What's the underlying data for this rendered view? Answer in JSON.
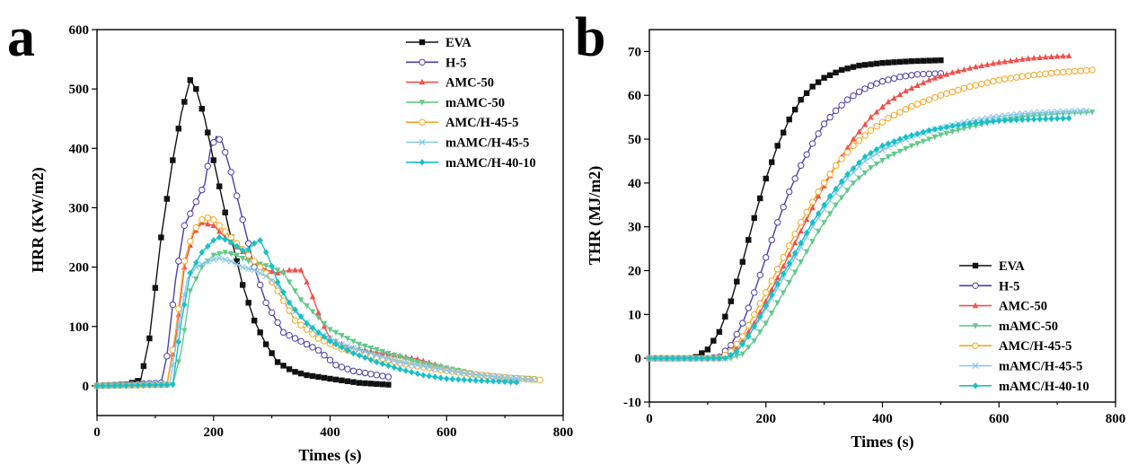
{
  "colors": {
    "EVA": "#111111",
    "H-5": "#4a3fa8",
    "AMC-50": "#f0514a",
    "mAMC-50": "#62c98a",
    "AMC/H-45-5": "#f5a623",
    "mAMC/H-45-5": "#86c7e8",
    "mAMC/H-40-10": "#17c0c8"
  },
  "chart_data": [
    {
      "type": "line",
      "panel_label": "a",
      "xlabel": "Times (s)",
      "ylabel": "HRR (KW/m2)",
      "xlim": [
        0,
        800
      ],
      "ylim": [
        -50,
        600
      ],
      "xticks": [
        0,
        200,
        400,
        600,
        800
      ],
      "yticks": [
        0,
        100,
        200,
        300,
        400,
        500,
        600
      ],
      "legend_position": "top-right",
      "series": [
        {
          "name": "EVA",
          "marker": "square",
          "x": [
            0,
            50,
            75,
            90,
            110,
            130,
            145,
            160,
            170,
            185,
            200,
            225,
            250,
            270,
            290,
            310,
            335,
            360,
            400,
            450,
            500
          ],
          "y": [
            0,
            2,
            10,
            80,
            250,
            380,
            460,
            515,
            500,
            450,
            380,
            270,
            170,
            110,
            70,
            40,
            25,
            18,
            12,
            5,
            2
          ]
        },
        {
          "name": "H-5",
          "marker": "circle-open",
          "x": [
            0,
            110,
            120,
            135,
            150,
            170,
            185,
            195,
            205,
            215,
            230,
            250,
            270,
            290,
            320,
            350,
            380,
            410,
            440,
            470,
            500
          ],
          "y": [
            0,
            5,
            50,
            180,
            270,
            310,
            340,
            400,
            420,
            410,
            360,
            280,
            200,
            140,
            90,
            75,
            60,
            35,
            25,
            20,
            15
          ]
        },
        {
          "name": "AMC-50",
          "marker": "triangle-up",
          "x": [
            0,
            120,
            135,
            150,
            165,
            180,
            200,
            220,
            245,
            270,
            290,
            310,
            330,
            350,
            360,
            370,
            385,
            400,
            430,
            470,
            510,
            550,
            600,
            650,
            700,
            720
          ],
          "y": [
            0,
            2,
            80,
            200,
            255,
            275,
            270,
            250,
            230,
            210,
            195,
            190,
            195,
            195,
            175,
            150,
            110,
            80,
            65,
            58,
            52,
            45,
            30,
            20,
            12,
            8
          ]
        },
        {
          "name": "mAMC-50",
          "marker": "triangle-down",
          "x": [
            0,
            130,
            145,
            160,
            180,
            200,
            220,
            240,
            260,
            280,
            300,
            320,
            350,
            400,
            450,
            500,
            550,
            600,
            650,
            700,
            750,
            760
          ],
          "y": [
            0,
            2,
            60,
            160,
            200,
            220,
            225,
            220,
            210,
            205,
            200,
            190,
            145,
            95,
            70,
            55,
            40,
            30,
            20,
            15,
            12,
            10
          ]
        },
        {
          "name": "AMC/H-45-5",
          "marker": "circle-open",
          "x": [
            0,
            120,
            135,
            150,
            165,
            180,
            195,
            210,
            230,
            250,
            270,
            290,
            310,
            340,
            380,
            420,
            470,
            520,
            580,
            640,
            700,
            760
          ],
          "y": [
            0,
            2,
            90,
            210,
            260,
            280,
            285,
            270,
            250,
            230,
            210,
            190,
            160,
            110,
            80,
            62,
            50,
            38,
            28,
            20,
            14,
            10
          ]
        },
        {
          "name": "mAMC/H-45-5",
          "marker": "x",
          "x": [
            0,
            125,
            140,
            155,
            170,
            190,
            210,
            230,
            250,
            270,
            290,
            310,
            340,
            380,
            420,
            470,
            520,
            580,
            640,
            700,
            750
          ],
          "y": [
            0,
            2,
            100,
            180,
            200,
            210,
            215,
            210,
            200,
            195,
            185,
            170,
            125,
            90,
            70,
            55,
            40,
            30,
            20,
            14,
            10
          ]
        },
        {
          "name": "mAMC/H-40-10",
          "marker": "diamond",
          "x": [
            0,
            130,
            145,
            160,
            180,
            200,
            210,
            225,
            240,
            255,
            270,
            280,
            295,
            310,
            330,
            360,
            400,
            440,
            480,
            520,
            560,
            600,
            650,
            700,
            720
          ],
          "y": [
            0,
            2,
            110,
            190,
            225,
            245,
            250,
            245,
            235,
            225,
            240,
            245,
            215,
            175,
            140,
            105,
            75,
            55,
            40,
            28,
            18,
            12,
            9,
            7,
            6
          ]
        }
      ]
    },
    {
      "type": "line",
      "panel_label": "b",
      "xlabel": "Times (s)",
      "ylabel": "THR (MJ/m2)",
      "xlim": [
        0,
        800
      ],
      "ylim": [
        -10,
        75
      ],
      "xticks": [
        0,
        200,
        400,
        600,
        800
      ],
      "yticks": [
        -10,
        0,
        10,
        20,
        30,
        40,
        50,
        60,
        70
      ],
      "legend_position": "bottom-right",
      "series": [
        {
          "name": "EVA",
          "marker": "square",
          "x": [
            0,
            70,
            80,
            100,
            120,
            140,
            160,
            180,
            200,
            220,
            240,
            260,
            280,
            300,
            330,
            360,
            400,
            450,
            500
          ],
          "y": [
            0,
            0,
            0.3,
            2,
            6,
            13,
            22,
            32,
            41,
            48.5,
            54.5,
            59,
            62,
            64,
            65.8,
            66.8,
            67.4,
            67.8,
            68
          ]
        },
        {
          "name": "H-5",
          "marker": "circle-open",
          "x": [
            0,
            100,
            120,
            140,
            160,
            180,
            200,
            220,
            240,
            260,
            280,
            300,
            320,
            340,
            360,
            380,
            400,
            430,
            460,
            500
          ],
          "y": [
            0,
            0,
            0.3,
            3,
            8,
            15,
            23,
            31,
            38,
            44,
            49,
            53.5,
            56.5,
            59,
            60.8,
            62.2,
            63.2,
            64.2,
            64.8,
            65
          ]
        },
        {
          "name": "AMC-50",
          "marker": "triangle-up",
          "x": [
            0,
            120,
            140,
            160,
            180,
            200,
            230,
            260,
            290,
            320,
            350,
            380,
            410,
            440,
            480,
            520,
            560,
            600,
            650,
            700,
            720
          ],
          "y": [
            0,
            0,
            1,
            4,
            8,
            13,
            21,
            29,
            37,
            44,
            50,
            55,
            58.5,
            61,
            63.5,
            65.2,
            66.5,
            67.5,
            68.4,
            68.9,
            69
          ]
        },
        {
          "name": "mAMC-50",
          "marker": "triangle-down",
          "x": [
            0,
            140,
            160,
            180,
            200,
            230,
            260,
            290,
            320,
            350,
            380,
            410,
            450,
            500,
            550,
            600,
            650,
            700,
            760
          ],
          "y": [
            0,
            0,
            1,
            4,
            8,
            15,
            22,
            29,
            35,
            40,
            43.5,
            46,
            48.5,
            51,
            52.8,
            54.2,
            55.2,
            55.8,
            56.2
          ]
        },
        {
          "name": "AMC/H-45-5",
          "marker": "circle-open",
          "x": [
            0,
            120,
            140,
            160,
            180,
            200,
            230,
            260,
            290,
            320,
            350,
            380,
            410,
            450,
            500,
            550,
            600,
            650,
            700,
            760
          ],
          "y": [
            0,
            0,
            1.5,
            5,
            10,
            15,
            23,
            31,
            38,
            44,
            48.5,
            52,
            54.8,
            57.5,
            60,
            62,
            63.5,
            64.5,
            65.2,
            65.8
          ]
        },
        {
          "name": "mAMC/H-45-5",
          "marker": "x",
          "x": [
            0,
            130,
            150,
            170,
            190,
            220,
            250,
            280,
            310,
            340,
            370,
            400,
            440,
            490,
            540,
            590,
            640,
            690,
            750
          ],
          "y": [
            0,
            0,
            1.5,
            5,
            9,
            16,
            23,
            30,
            36,
            41,
            45,
            47.5,
            50,
            52.2,
            53.8,
            55,
            55.8,
            56.2,
            56.5
          ]
        },
        {
          "name": "mAMC/H-40-10",
          "marker": "diamond",
          "x": [
            0,
            130,
            150,
            170,
            190,
            220,
            250,
            280,
            310,
            340,
            370,
            400,
            440,
            480,
            520,
            560,
            600,
            650,
            700,
            720
          ],
          "y": [
            0,
            0,
            1.5,
            5,
            9.5,
            17,
            24,
            31,
            37,
            42,
            46,
            48.5,
            50.5,
            52,
            53,
            53.7,
            54.2,
            54.5,
            54.7,
            54.8
          ]
        }
      ]
    }
  ]
}
